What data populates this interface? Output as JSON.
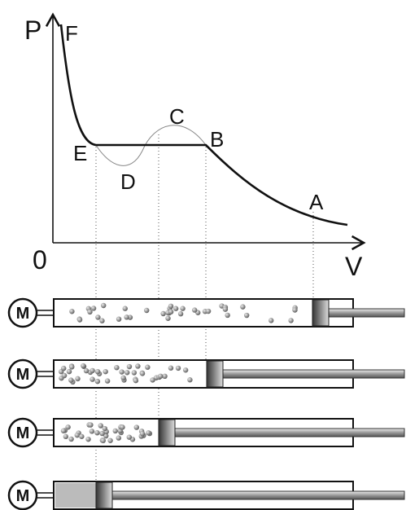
{
  "axes": {
    "y_label": "P",
    "x_label": "V",
    "origin": "0"
  },
  "points": [
    {
      "label": "F"
    },
    {
      "label": "C"
    },
    {
      "label": "B"
    },
    {
      "label": "E"
    },
    {
      "label": "D"
    },
    {
      "label": "A"
    }
  ],
  "cylinders": [
    {
      "motor": "M"
    },
    {
      "motor": "M"
    },
    {
      "motor": "M"
    },
    {
      "motor": "M"
    }
  ]
}
